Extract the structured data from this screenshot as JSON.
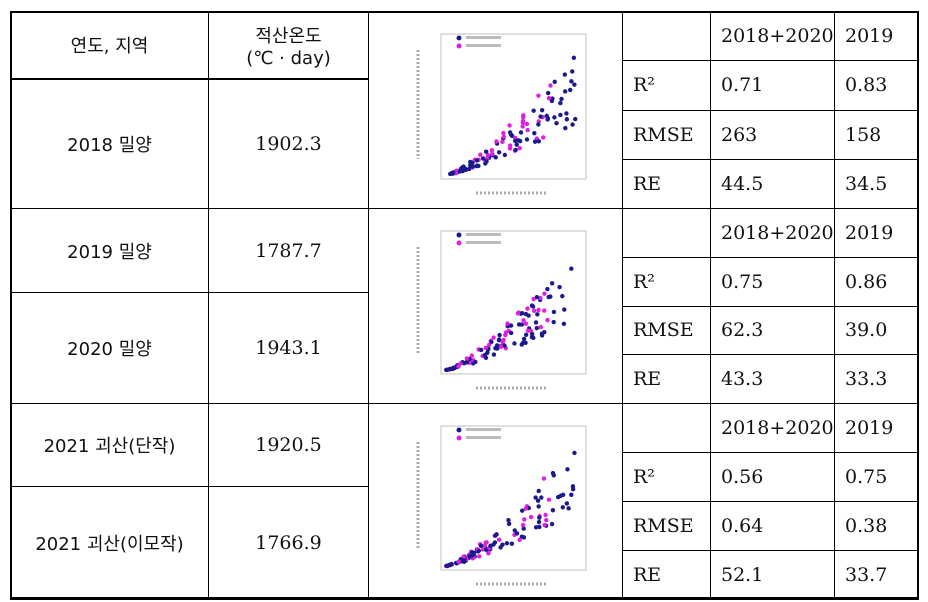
{
  "table": {
    "header": {
      "region": "연도, 지역",
      "gdd_title": "적산온도",
      "gdd_unit": "(℃ · day)"
    },
    "rows": [
      [
        "2018 밀양",
        "1902.3"
      ],
      [
        "2019 밀양",
        "1787.7"
      ],
      [
        "2020 밀양",
        "1943.1"
      ],
      [
        "2021 괴산(단작)",
        "1920.5"
      ],
      [
        "2021 괴산(이모작)",
        "1766.9"
      ]
    ],
    "stats": [
      {
        "columns": [
          "2018+2020",
          "2019"
        ],
        "rows": [
          [
            "R²",
            "0.71",
            "0.83"
          ],
          [
            "RMSE",
            "263",
            "158"
          ],
          [
            "RE",
            "44.5",
            "34.5"
          ]
        ]
      },
      {
        "columns": [
          "2018+2020",
          "2019"
        ],
        "rows": [
          [
            "R²",
            "0.75",
            "0.86"
          ],
          [
            "RMSE",
            "62.3",
            "39.0"
          ],
          [
            "RE",
            "43.3",
            "33.3"
          ]
        ]
      },
      {
        "columns": [
          "2018+2020",
          "2019"
        ],
        "rows": [
          [
            "R²",
            "0.56",
            "0.75"
          ],
          [
            "RMSE",
            "0.64",
            "0.38"
          ],
          [
            "RE",
            "52.1",
            "33.7"
          ]
        ]
      }
    ]
  }
}
